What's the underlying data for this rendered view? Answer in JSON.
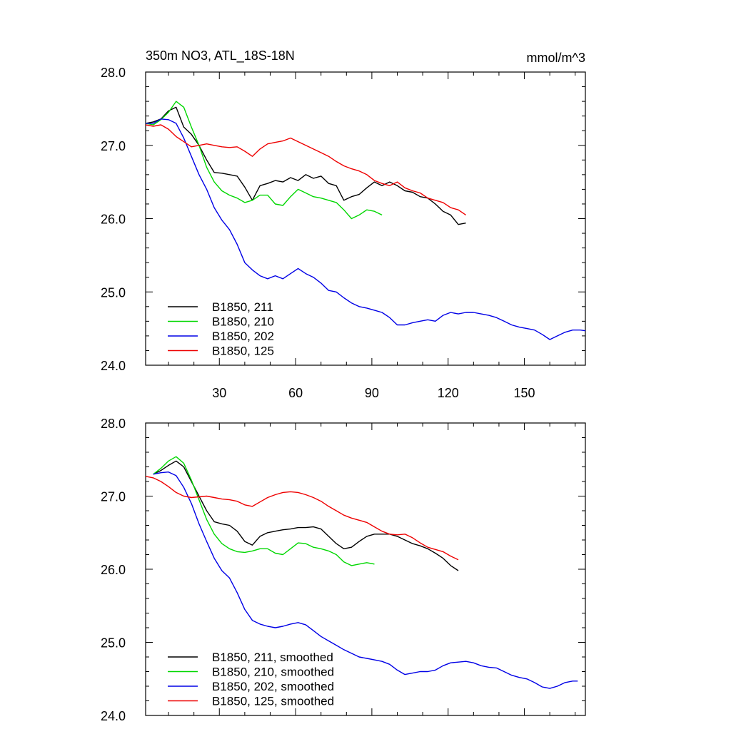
{
  "chart_data": [
    {
      "type": "line",
      "title": "350m NO3, ATL_18S-18N",
      "units": "mmol/m^3",
      "xlim": [
        1,
        174
      ],
      "ylim": [
        24.0,
        28.0
      ],
      "x_ticks": [
        30,
        60,
        90,
        120,
        150
      ],
      "y_ticks": [
        24.0,
        25.0,
        26.0,
        27.0,
        28.0
      ],
      "y_tick_labels": [
        "24.0",
        "25.0",
        "26.0",
        "27.0",
        "28.0"
      ],
      "legend_position": "bottom-left",
      "series": [
        {
          "name": "B1850, 211",
          "color": "#000000",
          "x": [
            1,
            4,
            7,
            10,
            13,
            16,
            19,
            22,
            25,
            28,
            31,
            34,
            37,
            40,
            43,
            46,
            49,
            52,
            55,
            58,
            61,
            64,
            67,
            70,
            73,
            76,
            79,
            82,
            85,
            88,
            91,
            94,
            97,
            100,
            103,
            106,
            109,
            112,
            115,
            118,
            121,
            124,
            127
          ],
          "y": [
            27.3,
            27.32,
            27.36,
            27.47,
            27.52,
            27.25,
            27.15,
            27.0,
            26.8,
            26.63,
            26.62,
            26.6,
            26.58,
            26.43,
            26.25,
            26.45,
            26.48,
            26.52,
            26.5,
            26.56,
            26.52,
            26.6,
            26.55,
            26.58,
            26.48,
            26.45,
            26.25,
            26.3,
            26.33,
            26.42,
            26.5,
            26.45,
            26.5,
            26.45,
            26.38,
            26.36,
            26.3,
            26.28,
            26.2,
            26.1,
            26.05,
            25.92,
            25.94
          ]
        },
        {
          "name": "B1850, 210",
          "color": "#00d700",
          "x": [
            1,
            4,
            7,
            10,
            13,
            16,
            19,
            22,
            25,
            28,
            31,
            34,
            37,
            40,
            43,
            46,
            49,
            52,
            55,
            58,
            61,
            64,
            67,
            70,
            73,
            76,
            79,
            82,
            85,
            88,
            91,
            94
          ],
          "y": [
            27.3,
            27.28,
            27.35,
            27.45,
            27.6,
            27.52,
            27.25,
            27.0,
            26.7,
            26.5,
            26.38,
            26.32,
            26.28,
            26.22,
            26.25,
            26.32,
            26.32,
            26.2,
            26.18,
            26.3,
            26.4,
            26.35,
            26.3,
            26.28,
            26.25,
            26.22,
            26.12,
            26.0,
            26.05,
            26.12,
            26.1,
            26.05
          ]
        },
        {
          "name": "B1850, 202",
          "color": "#0000e6",
          "x": [
            1,
            4,
            7,
            10,
            13,
            16,
            19,
            22,
            25,
            28,
            31,
            34,
            37,
            40,
            43,
            46,
            49,
            52,
            55,
            58,
            61,
            64,
            67,
            70,
            73,
            76,
            79,
            82,
            85,
            88,
            91,
            94,
            97,
            100,
            103,
            106,
            109,
            112,
            115,
            118,
            121,
            124,
            127,
            130,
            133,
            136,
            139,
            142,
            145,
            148,
            151,
            154,
            157,
            160,
            163,
            166,
            169,
            172,
            174
          ],
          "y": [
            27.3,
            27.3,
            27.36,
            27.35,
            27.3,
            27.1,
            26.85,
            26.6,
            26.4,
            26.15,
            25.98,
            25.85,
            25.65,
            25.4,
            25.3,
            25.22,
            25.18,
            25.22,
            25.18,
            25.25,
            25.32,
            25.25,
            25.2,
            25.12,
            25.02,
            25.0,
            24.92,
            24.85,
            24.8,
            24.78,
            24.75,
            24.72,
            24.65,
            24.55,
            24.55,
            24.58,
            24.6,
            24.62,
            24.6,
            24.68,
            24.72,
            24.7,
            24.72,
            24.72,
            24.7,
            24.68,
            24.65,
            24.6,
            24.55,
            24.52,
            24.5,
            24.48,
            24.42,
            24.35,
            24.4,
            24.45,
            24.48,
            24.48,
            24.47
          ]
        },
        {
          "name": "B1850, 125",
          "color": "#ee0000",
          "x": [
            1,
            4,
            7,
            10,
            13,
            16,
            19,
            22,
            25,
            28,
            31,
            34,
            37,
            40,
            43,
            46,
            49,
            52,
            55,
            58,
            61,
            64,
            67,
            70,
            73,
            76,
            79,
            82,
            85,
            88,
            91,
            94,
            97,
            100,
            103,
            106,
            109,
            112,
            115,
            118,
            121,
            124,
            127
          ],
          "y": [
            27.28,
            27.26,
            27.28,
            27.22,
            27.12,
            27.05,
            26.98,
            27.0,
            27.02,
            27.0,
            26.98,
            26.97,
            26.98,
            26.92,
            26.85,
            26.95,
            27.02,
            27.04,
            27.06,
            27.1,
            27.05,
            27.0,
            26.95,
            26.9,
            26.85,
            26.78,
            26.72,
            26.68,
            26.65,
            26.6,
            26.52,
            26.48,
            26.45,
            26.5,
            26.42,
            26.38,
            26.35,
            26.28,
            26.25,
            26.22,
            26.15,
            26.12,
            26.05
          ]
        }
      ]
    },
    {
      "type": "line",
      "xlim": [
        1,
        174
      ],
      "ylim": [
        24.0,
        28.0
      ],
      "x_ticks": [
        30,
        60,
        90,
        120,
        150
      ],
      "y_ticks": [
        24.0,
        25.0,
        26.0,
        27.0,
        28.0
      ],
      "y_tick_labels": [
        "24.0",
        "25.0",
        "26.0",
        "27.0",
        "28.0"
      ],
      "legend_position": "bottom-left",
      "series": [
        {
          "name": "B1850, 211, smoothed",
          "color": "#000000",
          "x": [
            4,
            7,
            10,
            13,
            16,
            19,
            22,
            25,
            28,
            31,
            34,
            37,
            40,
            43,
            46,
            49,
            52,
            55,
            58,
            61,
            64,
            67,
            70,
            73,
            76,
            79,
            82,
            85,
            88,
            91,
            94,
            97,
            100,
            103,
            106,
            109,
            112,
            115,
            118,
            121,
            124
          ],
          "y": [
            27.3,
            27.35,
            27.42,
            27.48,
            27.4,
            27.2,
            27.0,
            26.8,
            26.65,
            26.62,
            26.6,
            26.52,
            26.38,
            26.33,
            26.45,
            26.5,
            26.52,
            26.54,
            26.55,
            26.57,
            26.57,
            26.58,
            26.55,
            26.45,
            26.35,
            26.28,
            26.3,
            26.38,
            26.45,
            26.48,
            26.48,
            26.48,
            26.45,
            26.4,
            26.35,
            26.32,
            26.28,
            26.22,
            26.15,
            26.05,
            25.98
          ]
        },
        {
          "name": "B1850, 210, smoothed",
          "color": "#00d700",
          "x": [
            4,
            7,
            10,
            13,
            16,
            19,
            22,
            25,
            28,
            31,
            34,
            37,
            40,
            43,
            46,
            49,
            52,
            55,
            58,
            61,
            64,
            67,
            70,
            73,
            76,
            79,
            82,
            85,
            88,
            91
          ],
          "y": [
            27.3,
            27.38,
            27.48,
            27.54,
            27.45,
            27.22,
            26.95,
            26.68,
            26.48,
            26.35,
            26.28,
            26.24,
            26.23,
            26.25,
            26.28,
            26.28,
            26.22,
            26.2,
            26.28,
            26.36,
            26.35,
            26.3,
            26.28,
            26.25,
            26.2,
            26.1,
            26.05,
            26.07,
            26.09,
            26.07
          ]
        },
        {
          "name": "B1850, 202, smoothed",
          "color": "#0000e6",
          "x": [
            4,
            7,
            10,
            13,
            16,
            19,
            22,
            25,
            28,
            31,
            34,
            37,
            40,
            43,
            46,
            49,
            52,
            55,
            58,
            61,
            64,
            67,
            70,
            73,
            76,
            79,
            82,
            85,
            88,
            91,
            94,
            97,
            100,
            103,
            106,
            109,
            112,
            115,
            118,
            121,
            124,
            127,
            130,
            133,
            136,
            139,
            142,
            145,
            148,
            151,
            154,
            157,
            160,
            163,
            166,
            169,
            171
          ],
          "y": [
            27.3,
            27.32,
            27.33,
            27.28,
            27.12,
            26.9,
            26.62,
            26.38,
            26.15,
            25.98,
            25.88,
            25.68,
            25.45,
            25.3,
            25.25,
            25.22,
            25.2,
            25.22,
            25.25,
            25.27,
            25.24,
            25.16,
            25.08,
            25.02,
            24.96,
            24.9,
            24.85,
            24.8,
            24.78,
            24.76,
            24.74,
            24.7,
            24.62,
            24.56,
            24.58,
            24.6,
            24.6,
            24.62,
            24.68,
            24.72,
            24.73,
            24.74,
            24.72,
            24.68,
            24.66,
            24.65,
            24.6,
            24.55,
            24.52,
            24.5,
            24.45,
            24.39,
            24.37,
            24.4,
            24.45,
            24.47,
            24.47
          ]
        },
        {
          "name": "B1850, 125, smoothed",
          "color": "#ee0000",
          "x": [
            1,
            4,
            7,
            10,
            13,
            16,
            19,
            22,
            25,
            28,
            31,
            34,
            37,
            40,
            43,
            46,
            49,
            52,
            55,
            58,
            61,
            64,
            67,
            70,
            73,
            76,
            79,
            82,
            85,
            88,
            91,
            94,
            97,
            100,
            103,
            106,
            109,
            112,
            115,
            118,
            121,
            124
          ],
          "y": [
            27.27,
            27.25,
            27.2,
            27.13,
            27.05,
            27.0,
            26.98,
            26.99,
            27.0,
            26.98,
            26.96,
            26.95,
            26.93,
            26.88,
            26.86,
            26.92,
            26.98,
            27.02,
            27.05,
            27.06,
            27.05,
            27.02,
            26.98,
            26.93,
            26.86,
            26.8,
            26.74,
            26.7,
            26.67,
            26.64,
            26.58,
            26.52,
            26.48,
            26.47,
            26.48,
            26.43,
            26.36,
            26.3,
            26.27,
            26.24,
            26.18,
            26.13
          ]
        }
      ]
    }
  ]
}
